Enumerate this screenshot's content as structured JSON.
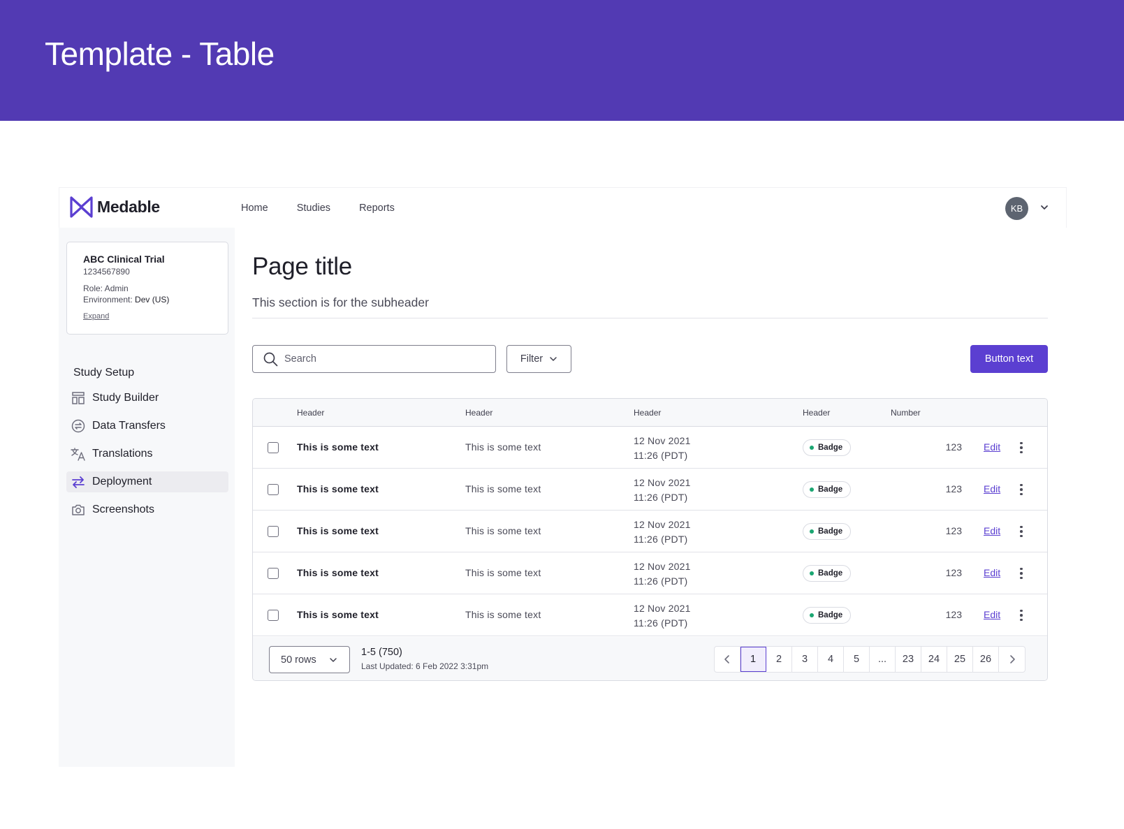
{
  "banner": {
    "title": "Template - Table"
  },
  "app": {
    "logo_text": "Medable",
    "nav": [
      "Home",
      "Studies",
      "Reports"
    ],
    "user_initials": "KB"
  },
  "sidebar": {
    "trial": {
      "name": "ABC Clinical Trial",
      "id": "1234567890",
      "role": "Role: Admin",
      "env_label": "Environment: ",
      "env_value": "Dev (US)",
      "expand": "Expand"
    },
    "section_title": "Study Setup",
    "items": [
      {
        "label": "Study Builder",
        "icon": "layout-icon"
      },
      {
        "label": "Data Transfers",
        "icon": "transfer-circle-icon"
      },
      {
        "label": "Translations",
        "icon": "translate-icon"
      },
      {
        "label": "Deployment",
        "icon": "swap-arrows-icon",
        "active": true
      },
      {
        "label": "Screenshots",
        "icon": "camera-icon"
      }
    ]
  },
  "main": {
    "title": "Page title",
    "subheader": "This section is for the subheader",
    "search_placeholder": "Search",
    "filter_label": "Filter",
    "button_label": "Button text"
  },
  "table": {
    "headers": [
      "Header",
      "Header",
      "Header",
      "Header",
      "Number"
    ],
    "rows": [
      {
        "col1": "This is some text",
        "col2": "This is some text",
        "date": "12 Nov 2021",
        "time": "11:26 (PDT)",
        "badge": "Badge",
        "number": "123",
        "action": "Edit"
      },
      {
        "col1": "This is some text",
        "col2": "This is some text",
        "date": "12 Nov 2021",
        "time": "11:26 (PDT)",
        "badge": "Badge",
        "number": "123",
        "action": "Edit"
      },
      {
        "col1": "This is some text",
        "col2": "This is some text",
        "date": "12 Nov 2021",
        "time": "11:26 (PDT)",
        "badge": "Badge",
        "number": "123",
        "action": "Edit"
      },
      {
        "col1": "This is some text",
        "col2": "This is some text",
        "date": "12 Nov 2021",
        "time": "11:26 (PDT)",
        "badge": "Badge",
        "number": "123",
        "action": "Edit"
      },
      {
        "col1": "This is some text",
        "col2": "This is some text",
        "date": "12 Nov 2021",
        "time": "11:26 (PDT)",
        "badge": "Badge",
        "number": "123",
        "action": "Edit"
      }
    ],
    "footer": {
      "rows_per_page": "50 rows",
      "range": "1-5 (750)",
      "last_updated": "Last Updated: 6 Feb 2022 3:31pm",
      "pages": [
        "1",
        "2",
        "3",
        "4",
        "5",
        "...",
        "23",
        "24",
        "25",
        "26"
      ],
      "current_page": "1"
    }
  },
  "colors": {
    "brand": "#523ab3",
    "accent": "#5b3fd1",
    "badge_dot": "#1ba672"
  }
}
